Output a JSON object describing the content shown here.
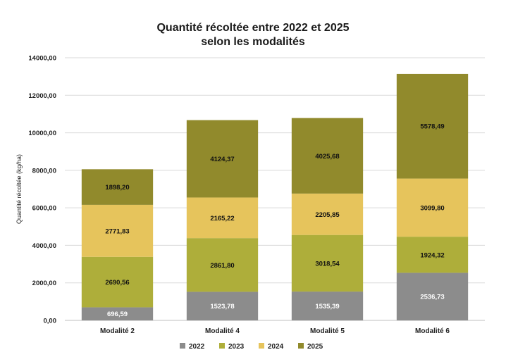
{
  "chart_data": {
    "type": "bar",
    "stacked": true,
    "title_line1": "Quantité récoltée entre 2022 et 2025",
    "title_line2": "selon les modalités",
    "xlabel": "",
    "ylabel": "Quantité récoltée (kg/ha)",
    "ylim": [
      0,
      14000
    ],
    "yticks": [
      "0,00",
      "2000,00",
      "4000,00",
      "6000,00",
      "8000,00",
      "10000,00",
      "12000,00",
      "14000,00"
    ],
    "grid": true,
    "legend_position": "bottom",
    "categories": [
      "Modalité 2",
      "Modalité 4",
      "Modalité 5",
      "Modalité 6"
    ],
    "series": [
      {
        "name": "2022",
        "color": "#8c8c8c",
        "label_color": "#ffffff",
        "values": [
          696.59,
          1523.78,
          1535.39,
          2536.73
        ],
        "labels": [
          "696,59",
          "1523,78",
          "1535,39",
          "2536,73"
        ]
      },
      {
        "name": "2023",
        "color": "#aeae3a",
        "label_color": "#111111",
        "values": [
          2690.56,
          2861.8,
          3018.54,
          1924.32
        ],
        "labels": [
          "2690,56",
          "2861,80",
          "3018,54",
          "1924,32"
        ]
      },
      {
        "name": "2024",
        "color": "#e6c45c",
        "label_color": "#111111",
        "values": [
          2771.83,
          2165.22,
          2205.85,
          3099.8
        ],
        "labels": [
          "2771,83",
          "2165,22",
          "2205,85",
          "3099,80"
        ]
      },
      {
        "name": "2025",
        "color": "#918a2c",
        "label_color": "#111111",
        "values": [
          1898.2,
          4124.37,
          4025.68,
          5578.49
        ],
        "labels": [
          "1898,20",
          "4124,37",
          "4025,68",
          "5578,49"
        ]
      }
    ]
  }
}
